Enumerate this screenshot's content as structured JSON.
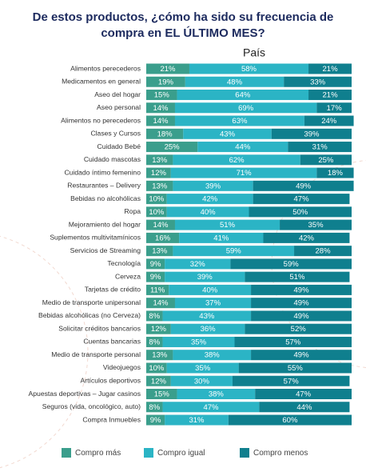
{
  "chart_data": {
    "type": "stacked-bar-horizontal",
    "title": "De estos productos, ¿cómo ha sido su frecuencia de compra en EL ÚLTIMO MES?",
    "subtitle": "País",
    "categories": [
      "Alimentos perecederos",
      "Medicamentos en general",
      "Aseo del hogar",
      "Aseo personal",
      "Alimentos no perecederos",
      "Clases y Cursos",
      "Cuidado Bebé",
      "Cuidado mascotas",
      "Cuidado íntimo femenino",
      "Restaurantes – Delivery",
      "Bebidas no alcohólicas",
      "Ropa",
      "Mejoramiento del hogar",
      "Suplementos multivitamínicos",
      "Servicios de Streaming",
      "Tecnología",
      "Cerveza",
      "Tarjetas de crédito",
      "Medio de transporte unipersonal",
      "Bebidas alcohólicas (no Cerveza)",
      "Solicitar créditos bancarios",
      "Cuentas bancarias",
      "Medio de transporte personal",
      "Videojuegos",
      "Artículos deportivos",
      "Apuestas deportivas – Jugar casinos",
      "Seguros (vida, oncológico, auto)",
      "Compra Inmuebles"
    ],
    "series": [
      {
        "name": "Compro más",
        "color": "#3a9e8c",
        "values": [
          21,
          19,
          15,
          14,
          14,
          18,
          25,
          13,
          12,
          13,
          10,
          10,
          14,
          16,
          13,
          9,
          9,
          11,
          14,
          8,
          12,
          8,
          13,
          10,
          12,
          15,
          8,
          9
        ],
        "value_labels": [
          "21%",
          "19%",
          "15%",
          "14%",
          "14%",
          "18%",
          "25%",
          "13%",
          "12%",
          "13%",
          "10%",
          "10%",
          "14%",
          "16%",
          "13%",
          "9%",
          "9%",
          "11%",
          "14%",
          "8%",
          "12%",
          "8%",
          "13%",
          "10%",
          "12%",
          "15%",
          "8%",
          "9%"
        ]
      },
      {
        "name": "Compro igual",
        "color": "#2bb4c5",
        "values": [
          58,
          48,
          64,
          69,
          63,
          43,
          44,
          62,
          71,
          39,
          42,
          40,
          51,
          41,
          59,
          32,
          39,
          40,
          37,
          43,
          36,
          35,
          38,
          35,
          30,
          38,
          47,
          31
        ],
        "value_labels": [
          "58%",
          "48%",
          "64%",
          "69%",
          "63%",
          "43%",
          "44%",
          "62%",
          "71%",
          "39%",
          "42%",
          "40%",
          "51%",
          "41%",
          "59%",
          "32%",
          "39%",
          "40%",
          "37%",
          "43%",
          "36%",
          "35%",
          "38%",
          "35%",
          "30%",
          "38%",
          "47%",
          "31%"
        ]
      },
      {
        "name": "Compro menos",
        "color": "#0f7f8e",
        "values": [
          21,
          33,
          21,
          17,
          24,
          39,
          31,
          25,
          18,
          49,
          47,
          50,
          35,
          42,
          28,
          59,
          51,
          49,
          49,
          49,
          52,
          57,
          49,
          55,
          57,
          47,
          44,
          60
        ],
        "value_labels": [
          "21%",
          "33%",
          "21%",
          "17%",
          "24%",
          "39%",
          "31%",
          "25%",
          "18%",
          "49%",
          "47%",
          "50%",
          "35%",
          "42%",
          "28%",
          "59%",
          "51%",
          "49%",
          "49%",
          "49%",
          "52%",
          "57%",
          "49%",
          "55%",
          "57%",
          "47%",
          "44%",
          "60%"
        ]
      }
    ]
  }
}
